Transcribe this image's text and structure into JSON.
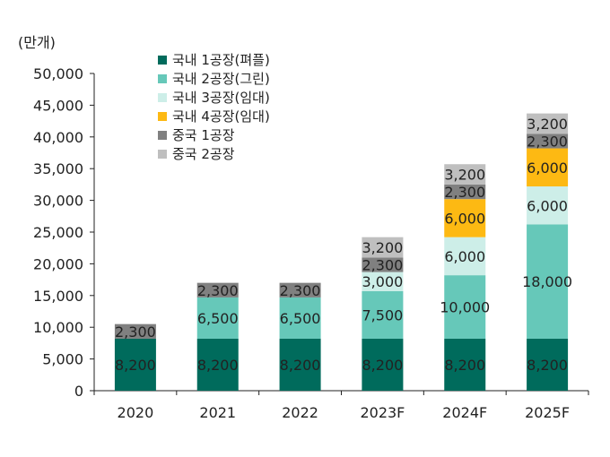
{
  "chart_data": {
    "type": "bar",
    "stacked": true,
    "unit_label": "(만개)",
    "categories": [
      "2020",
      "2021",
      "2022",
      "2023F",
      "2024F",
      "2025F"
    ],
    "ylim": [
      0,
      50000
    ],
    "yticks": [
      0,
      5000,
      10000,
      15000,
      20000,
      25000,
      30000,
      35000,
      40000,
      45000,
      50000
    ],
    "ytick_labels": [
      "0",
      "5,000",
      "10,000",
      "15,000",
      "20,000",
      "25,000",
      "30,000",
      "35,000",
      "40,000",
      "45,000",
      "50,000"
    ],
    "grid": false,
    "legend_position": "top-left",
    "series": [
      {
        "name": "국내 1공장(펴플)",
        "color": "#006b5c",
        "values": [
          8200,
          8200,
          8200,
          8200,
          8200,
          8200
        ]
      },
      {
        "name": "국내 2공장(그린)",
        "color": "#66c8b9",
        "values": [
          0,
          6500,
          6500,
          7500,
          10000,
          18000
        ]
      },
      {
        "name": "국내 3공장(임대)",
        "color": "#cdeee8",
        "values": [
          0,
          0,
          0,
          3000,
          6000,
          6000
        ]
      },
      {
        "name": "국내 4공장(임대)",
        "color": "#fdb913",
        "values": [
          0,
          0,
          0,
          0,
          6000,
          6000
        ]
      },
      {
        "name": "중국 1공장",
        "color": "#808080",
        "values": [
          2300,
          2300,
          2300,
          2300,
          2300,
          2300
        ]
      },
      {
        "name": "중국 2공장",
        "color": "#bfbfbf",
        "values": [
          0,
          0,
          0,
          3200,
          3200,
          3200
        ]
      }
    ]
  }
}
